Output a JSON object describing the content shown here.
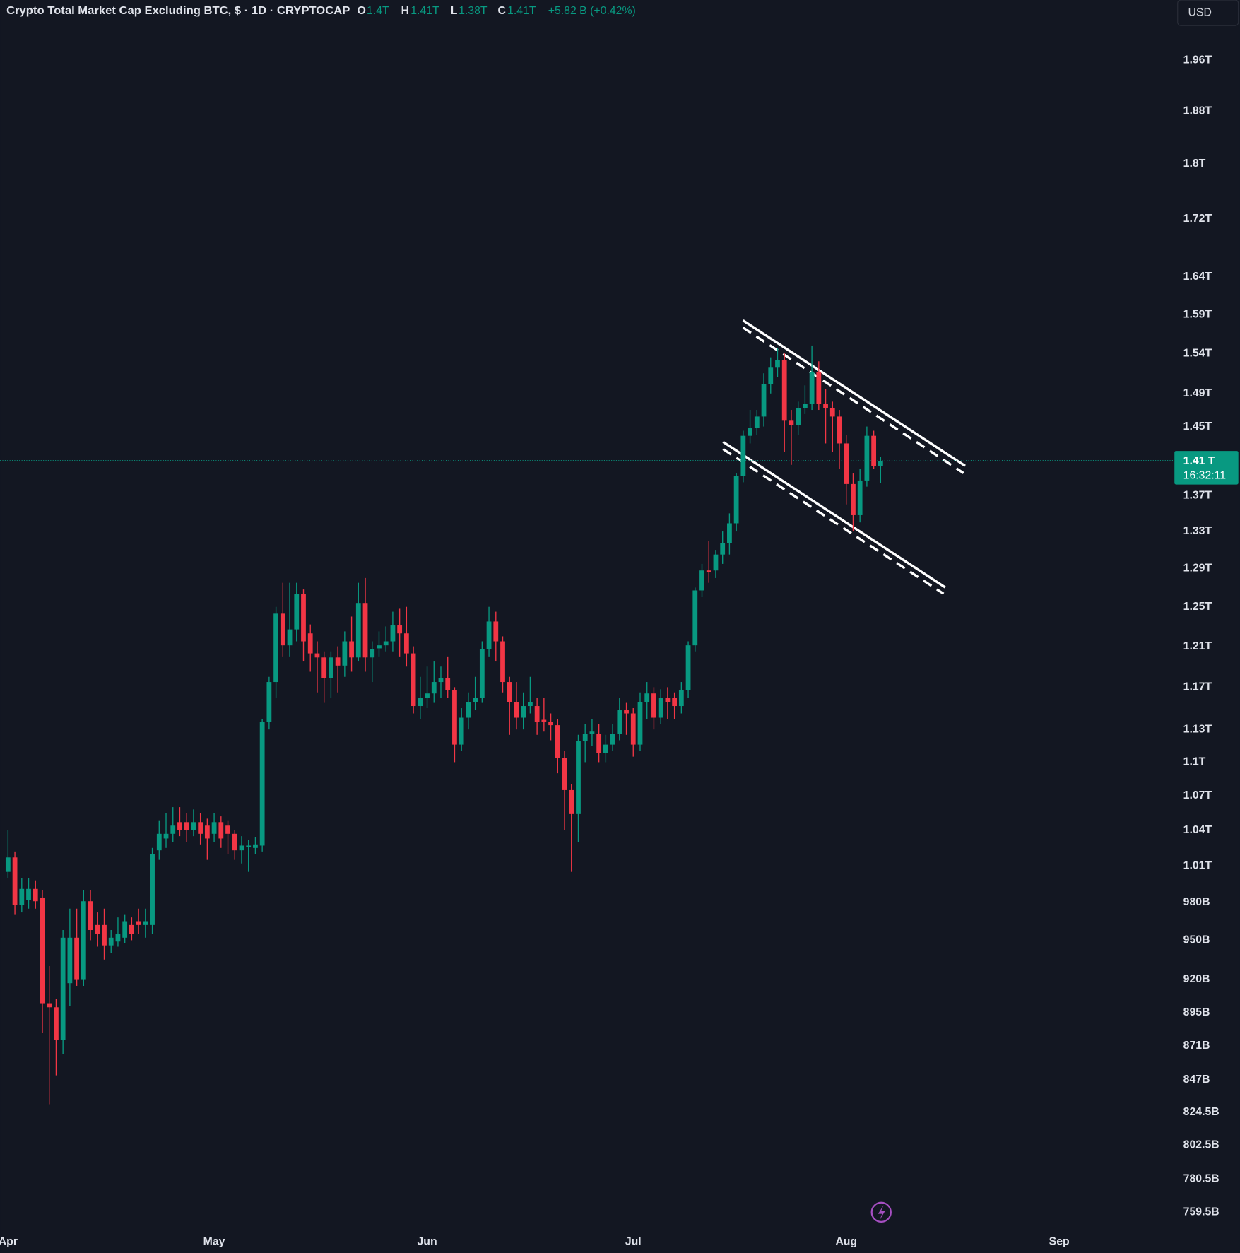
{
  "header": {
    "symbol": "Crypto Total Market Cap Excluding BTC, $ · 1D · CRYPTOCAP",
    "ohlc": [
      {
        "key": "O",
        "label": "1.4T"
      },
      {
        "key": "H",
        "label": "1.41T"
      },
      {
        "key": "L",
        "label": "1.38T"
      },
      {
        "key": "C",
        "label": "1.41T"
      }
    ],
    "change": "+5.82 B (+0.42%)",
    "currency": "USD"
  },
  "chart_data": {
    "type": "candlestick",
    "log_scale": true,
    "grid": false,
    "up_color": "#089981",
    "down_color": "#f23645",
    "categories": [
      "Apr",
      null,
      null,
      null,
      null,
      null,
      null,
      null,
      null,
      null,
      null,
      null,
      null,
      null,
      null,
      null,
      null,
      null,
      null,
      null,
      null,
      null,
      null,
      null,
      null,
      null,
      null,
      null,
      null,
      null,
      "May",
      null,
      null,
      null,
      null,
      null,
      null,
      null,
      null,
      null,
      null,
      null,
      null,
      null,
      null,
      null,
      null,
      null,
      null,
      null,
      null,
      null,
      null,
      null,
      null,
      null,
      null,
      null,
      null,
      null,
      null,
      "Jun",
      null,
      null,
      null,
      null,
      null,
      null,
      null,
      null,
      null,
      null,
      null,
      null,
      null,
      null,
      null,
      null,
      null,
      null,
      null,
      null,
      null,
      null,
      null,
      null,
      null,
      null,
      null,
      null,
      null,
      "Jul",
      null,
      null,
      null,
      null,
      null,
      null,
      null,
      null,
      null,
      null,
      null,
      null,
      null,
      null,
      null,
      null,
      null,
      null,
      null,
      null,
      null,
      null,
      null,
      null,
      null,
      null,
      null,
      null,
      null,
      null,
      "Aug",
      null,
      null,
      null,
      null,
      null,
      null,
      null,
      null,
      null,
      null,
      null,
      null,
      null,
      null,
      null,
      null,
      null,
      null,
      null,
      null,
      null,
      null,
      null,
      null,
      null,
      null,
      null,
      null,
      null,
      null,
      "Sep"
    ],
    "open": [
      1005,
      1017,
      978,
      982,
      991,
      984,
      902,
      899,
      875,
      917,
      952,
      920,
      981,
      962,
      962,
      946,
      949,
      952,
      962,
      965,
      962,
      962,
      1023,
      1033,
      1037,
      1047,
      1047,
      1040,
      1047,
      1044,
      1037,
      1047,
      1044,
      1037,
      1023,
      1026,
      1025,
      1027,
      1137,
      1175,
      1243,
      1211,
      1227,
      1263,
      1223,
      1203,
      1199,
      1179,
      1199,
      1191,
      1215,
      1199,
      1254,
      1199,
      1208,
      1211,
      1215,
      1231,
      1223,
      1203,
      1152,
      1160,
      1164,
      1175,
      1179,
      1167,
      1116,
      1141,
      1156,
      1160,
      1207,
      1235,
      1215,
      1175,
      1156,
      1141,
      1152,
      1152,
      1139,
      1137,
      1134,
      1104,
      1075,
      1054,
      1119,
      1126,
      1126,
      1108,
      1116,
      1126,
      1148,
      1145,
      1116,
      1156,
      1164,
      1141,
      1160,
      1160,
      1152,
      1167,
      1211,
      1267,
      1288,
      1288,
      1305,
      1317,
      1339,
      1392,
      1439,
      1448,
      1462,
      1502,
      1522,
      1532,
      1457,
      1452,
      1472,
      1477,
      1517,
      1477,
      1472,
      1462,
      1430,
      1383,
      1348,
      1387,
      1439,
      1404,
      null,
      null,
      null,
      null,
      null,
      null,
      null,
      null,
      null,
      null,
      null,
      null,
      null,
      null,
      null,
      null,
      null,
      null,
      null,
      null,
      null,
      null,
      null,
      null,
      null,
      null
    ],
    "high": [
      1040,
      1022,
      1000,
      1000,
      998,
      990,
      930,
      905,
      958,
      975,
      975,
      990,
      990,
      972,
      975,
      958,
      968,
      970,
      968,
      975,
      975,
      1025,
      1048,
      1055,
      1060,
      1060,
      1055,
      1058,
      1055,
      1050,
      1055,
      1052,
      1048,
      1040,
      1035,
      1032,
      1034,
      1140,
      1180,
      1250,
      1275,
      1275,
      1275,
      1268,
      1232,
      1215,
      1205,
      1205,
      1210,
      1225,
      1240,
      1275,
      1280,
      1215,
      1225,
      1230,
      1245,
      1248,
      1250,
      1210,
      1180,
      1190,
      1195,
      1190,
      1200,
      1170,
      1150,
      1165,
      1180,
      1215,
      1250,
      1245,
      1220,
      1180,
      1175,
      1165,
      1180,
      1160,
      1160,
      1145,
      1140,
      1110,
      1080,
      1125,
      1135,
      1140,
      1135,
      1125,
      1135,
      1160,
      1155,
      1150,
      1165,
      1175,
      1170,
      1168,
      1170,
      1165,
      1175,
      1215,
      1270,
      1295,
      1320,
      1310,
      1330,
      1350,
      1395,
      1445,
      1470,
      1470,
      1515,
      1535,
      1547,
      1540,
      1470,
      1480,
      1500,
      1550,
      1530,
      1495,
      1480,
      1470,
      1440,
      1395,
      1400,
      1450,
      1445,
      1414,
      null,
      null,
      null,
      null,
      null,
      null,
      null,
      null,
      null,
      null,
      null,
      null,
      null,
      null,
      null,
      null,
      null,
      null,
      null,
      null,
      null,
      null,
      null,
      null,
      null,
      null
    ],
    "low": [
      1000,
      970,
      972,
      975,
      975,
      880,
      830,
      850,
      865,
      900,
      915,
      915,
      950,
      945,
      935,
      940,
      945,
      948,
      950,
      955,
      952,
      955,
      1015,
      1025,
      1030,
      1035,
      1030,
      1035,
      1028,
      1015,
      1030,
      1025,
      1020,
      1015,
      1012,
      1005,
      1020,
      1022,
      1130,
      1160,
      1200,
      1200,
      1215,
      1195,
      1185,
      1165,
      1155,
      1160,
      1165,
      1180,
      1185,
      1195,
      1185,
      1175,
      1200,
      1205,
      1205,
      1200,
      1190,
      1145,
      1140,
      1150,
      1155,
      1160,
      1160,
      1100,
      1110,
      1130,
      1148,
      1155,
      1200,
      1195,
      1165,
      1125,
      1130,
      1130,
      1145,
      1125,
      1128,
      1120,
      1090,
      1040,
      1005,
      1030,
      1100,
      1115,
      1100,
      1100,
      1110,
      1120,
      1125,
      1105,
      1110,
      1140,
      1130,
      1135,
      1140,
      1140,
      1145,
      1160,
      1205,
      1260,
      1275,
      1280,
      1295,
      1305,
      1330,
      1385,
      1430,
      1440,
      1450,
      1490,
      1510,
      1420,
      1405,
      1440,
      1465,
      1470,
      1470,
      1430,
      1420,
      1400,
      1360,
      1330,
      1340,
      1380,
      1400,
      1384,
      null,
      null,
      null,
      null,
      null,
      null,
      null,
      null,
      null,
      null,
      null,
      null,
      null,
      null,
      null,
      null,
      null,
      null,
      null,
      null,
      null,
      null,
      null,
      null,
      null,
      null
    ],
    "close": [
      1017,
      978,
      991,
      991,
      981,
      902,
      899,
      875,
      952,
      952,
      920,
      981,
      958,
      955,
      946,
      952,
      955,
      965,
      955,
      962,
      965,
      1020,
      1037,
      1037,
      1044,
      1040,
      1040,
      1047,
      1037,
      1033,
      1047,
      1033,
      1037,
      1023,
      1027,
      1027,
      1028,
      1137,
      1175,
      1243,
      1211,
      1227,
      1263,
      1215,
      1203,
      1199,
      1179,
      1199,
      1191,
      1215,
      1199,
      1254,
      1199,
      1207,
      1211,
      1215,
      1231,
      1223,
      1203,
      1152,
      1160,
      1164,
      1175,
      1179,
      1167,
      1116,
      1141,
      1156,
      1160,
      1207,
      1235,
      1215,
      1175,
      1156,
      1141,
      1152,
      1156,
      1137,
      1137,
      1134,
      1104,
      1075,
      1054,
      1119,
      1126,
      1128,
      1108,
      1116,
      1126,
      1148,
      1145,
      1116,
      1156,
      1164,
      1141,
      1160,
      1156,
      1152,
      1167,
      1211,
      1267,
      1288,
      1286,
      1305,
      1317,
      1339,
      1392,
      1439,
      1448,
      1462,
      1502,
      1522,
      1532,
      1457,
      1452,
      1472,
      1477,
      1517,
      1477,
      1472,
      1462,
      1430,
      1383,
      1348,
      1387,
      1439,
      1404,
      1409,
      null,
      null,
      null,
      null,
      null,
      null,
      null,
      null,
      null,
      null,
      null,
      null,
      null,
      null,
      null,
      null,
      null,
      null,
      null,
      null,
      null,
      null,
      null,
      null,
      null,
      null
    ],
    "ylim": [
      748,
      2060
    ],
    "yticks": [
      {
        "value": 1960,
        "label": "1.96T"
      },
      {
        "value": 1880,
        "label": "1.88T"
      },
      {
        "value": 1800,
        "label": "1.8T"
      },
      {
        "value": 1720,
        "label": "1.72T"
      },
      {
        "value": 1640,
        "label": "1.64T"
      },
      {
        "value": 1590,
        "label": "1.59T"
      },
      {
        "value": 1540,
        "label": "1.54T"
      },
      {
        "value": 1490,
        "label": "1.49T"
      },
      {
        "value": 1450,
        "label": "1.45T"
      },
      {
        "value": 1370,
        "label": "1.37T"
      },
      {
        "value": 1330,
        "label": "1.33T"
      },
      {
        "value": 1290,
        "label": "1.29T"
      },
      {
        "value": 1250,
        "label": "1.25T"
      },
      {
        "value": 1210,
        "label": "1.21T"
      },
      {
        "value": 1170,
        "label": "1.17T"
      },
      {
        "value": 1130,
        "label": "1.13T"
      },
      {
        "value": 1100,
        "label": "1.1T"
      },
      {
        "value": 1070,
        "label": "1.07T"
      },
      {
        "value": 1040,
        "label": "1.04T"
      },
      {
        "value": 1010,
        "label": "1.01T"
      },
      {
        "value": 980,
        "label": "980B"
      },
      {
        "value": 950,
        "label": "950B"
      },
      {
        "value": 920,
        "label": "920B"
      },
      {
        "value": 895,
        "label": "895B"
      },
      {
        "value": 871,
        "label": "871B"
      },
      {
        "value": 847,
        "label": "847B"
      },
      {
        "value": 824.5,
        "label": "824.5B"
      },
      {
        "value": 802.5,
        "label": "802.5B"
      },
      {
        "value": 780.5,
        "label": "780.5B"
      },
      {
        "value": 759.5,
        "label": "759.5B"
      }
    ],
    "price_tag": {
      "value": 1410,
      "label": "1.41 T",
      "countdown": "16:32:11",
      "color": "#089981"
    }
  }
}
